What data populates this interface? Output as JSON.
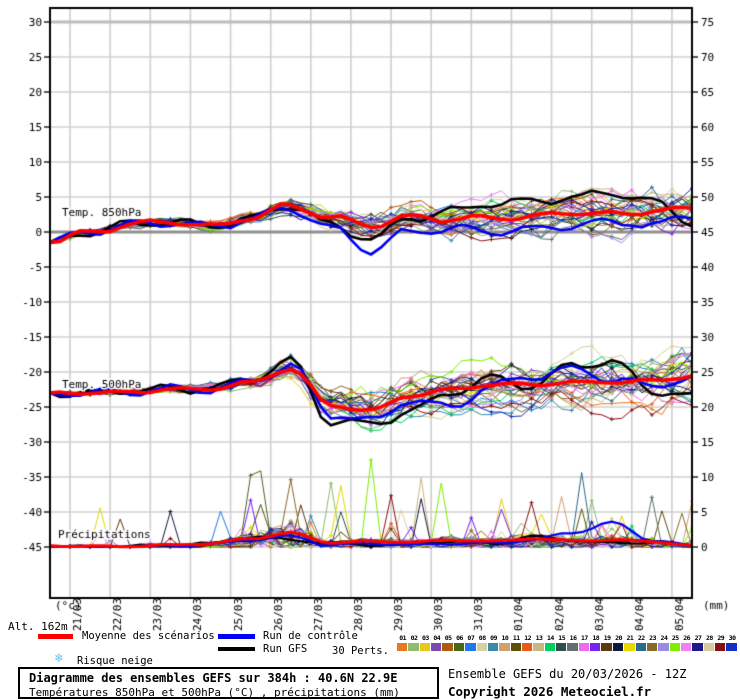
{
  "labels": {
    "alt": "Alt. 162m"
  },
  "legend": {
    "mean": {
      "label": "Moyenne des scénarios",
      "color": "#ff0000"
    },
    "control": {
      "label": "Run de contrôle",
      "color": "#0000ee"
    },
    "gfs": {
      "label": "Run GFS",
      "color": "#000000"
    }
  },
  "perts": {
    "label": "30 Perts.",
    "ids": [
      "01",
      "02",
      "03",
      "04",
      "05",
      "06",
      "07",
      "08",
      "09",
      "10",
      "11",
      "12",
      "13",
      "14",
      "15",
      "16",
      "17",
      "18",
      "19",
      "20",
      "21",
      "22",
      "23",
      "24",
      "25",
      "26",
      "27",
      "28",
      "29",
      "30"
    ],
    "colors": [
      "#e87820",
      "#8fbc6f",
      "#e8c820",
      "#7a4ab0",
      "#b05a10",
      "#4a681a",
      "#1e7ae8",
      "#d8d0a0",
      "#3a8aa8",
      "#d0a070",
      "#5a500a",
      "#e85a1a",
      "#c8b880",
      "#00d060",
      "#2f4f4f",
      "#607070",
      "#ee6aee",
      "#7722ee",
      "#5a3a10",
      "#101840",
      "#e8d800",
      "#2a6a8a",
      "#8a6a2a",
      "#9a8ae8",
      "#7fee00",
      "#ee82ee",
      "#1a1a8a",
      "#d8c8a0",
      "#8a1010",
      "#1030c0"
    ]
  },
  "snow": {
    "icon_glyph": "❄",
    "label": "Risque neige"
  },
  "footer": {
    "title_line1": "Diagramme des ensembles GEFS sur 384h : 40.6N 22.9E",
    "title_line2": "Températures 850hPa et 500hPa (°C) , précipitations (mm)",
    "run_info": "Ensemble GEFS du 20/03/2026 - 12Z",
    "copyright": "Copyright 2026 Meteociel.fr"
  },
  "chart_data": {
    "type": "line",
    "hours_total": 384,
    "x_ticks": [
      "21/03",
      "22/03",
      "23/03",
      "24/03",
      "25/03",
      "26/03",
      "27/03",
      "28/03",
      "29/03",
      "30/03",
      "31/03",
      "01/04",
      "02/04",
      "03/04",
      "04/04",
      "05/04"
    ],
    "y_left": {
      "unit": "(°c)",
      "min": -45,
      "max": 30,
      "step": 5
    },
    "y_right": {
      "unit": "(mm)",
      "min": 0,
      "max": 75,
      "step": 5
    },
    "grid": {
      "color": "#cfcfcf",
      "zero_line_color": "#8f8f8f",
      "top_line_color": "#bdbdbd"
    },
    "panels": {
      "temp850": {
        "label": "Temp. 850hPa",
        "mean": {
          "name": "Moyenne des scénarios",
          "color": "#ff0000",
          "values": [
            -1.5,
            0.0,
            1.0,
            1.5,
            0.8,
            2.0,
            3.8,
            2.0,
            1.0,
            2.2,
            1.8,
            2.0,
            2.2,
            2.8,
            2.5,
            3.0,
            3.4
          ]
        },
        "control": {
          "name": "Run de contrôle",
          "color": "#0000ee",
          "values": [
            -1.5,
            0.0,
            1.0,
            1.4,
            0.8,
            1.8,
            3.5,
            0.5,
            -2.5,
            0.0,
            0.5,
            0.0,
            0.5,
            1.0,
            1.5,
            1.0,
            2.4
          ]
        },
        "gfs": {
          "name": "Run GFS",
          "color": "#000000",
          "values": [
            -1.5,
            0.1,
            1.0,
            1.5,
            0.9,
            2.0,
            4.0,
            1.0,
            -1.0,
            2.0,
            3.0,
            4.0,
            4.5,
            5.0,
            5.5,
            4.5,
            1.5
          ]
        },
        "spread": [
          0.3,
          0.5,
          0.6,
          0.7,
          0.9,
          1.1,
          1.6,
          2.6,
          3.4,
          3.5,
          3.6,
          4.0,
          4.0,
          4.4,
          4.6,
          5.0,
          5.4
        ]
      },
      "temp500": {
        "label": "Temp. 500hPa",
        "mean": {
          "name": "Moyenne des scénarios",
          "color": "#ff0000",
          "values": [
            -23.0,
            -23.0,
            -22.8,
            -22.5,
            -22.4,
            -21.5,
            -19.5,
            -24.8,
            -25.5,
            -23.3,
            -22.5,
            -21.8,
            -21.8,
            -21.5,
            -21.4,
            -21.3,
            -20.5
          ]
        },
        "control": {
          "name": "Run de contrôle",
          "color": "#0000ee",
          "values": [
            -23.0,
            -23.0,
            -22.8,
            -22.5,
            -22.4,
            -21.3,
            -19.0,
            -26.0,
            -27.0,
            -24.0,
            -25.0,
            -22.0,
            -20.5,
            -19.5,
            -21.0,
            -22.0,
            -21.0
          ]
        },
        "gfs": {
          "name": "Run GFS",
          "color": "#000000",
          "values": [
            -23.0,
            -23.0,
            -22.7,
            -22.4,
            -22.3,
            -21.0,
            -18.5,
            -27.0,
            -27.5,
            -25.5,
            -23.0,
            -21.0,
            -22.0,
            -19.0,
            -18.5,
            -22.5,
            -23.5
          ]
        },
        "spread": [
          0.3,
          0.5,
          0.6,
          0.8,
          1.0,
          1.6,
          2.6,
          4.0,
          4.4,
          4.5,
          4.6,
          5.0,
          5.0,
          5.2,
          5.4,
          5.6,
          6.0
        ]
      },
      "precip": {
        "label": "Précipitations",
        "mean": {
          "name": "Moyenne des scénarios",
          "color": "#ff0000",
          "values": [
            0.2,
            0.1,
            0.1,
            0.3,
            0.5,
            1.2,
            2.0,
            0.6,
            0.8,
            0.7,
            1.0,
            0.8,
            1.2,
            0.9,
            1.0,
            0.8,
            0.2
          ]
        },
        "control": {
          "name": "Run de contrôle",
          "color": "#0000ee",
          "values": [
            0.0,
            0.0,
            0.0,
            0.2,
            0.4,
            1.0,
            1.5,
            0.3,
            0.5,
            0.3,
            0.5,
            0.5,
            1.0,
            2.0,
            3.5,
            1.0,
            0.2
          ]
        },
        "gfs": {
          "name": "Run GFS",
          "color": "#000000",
          "values": [
            0.0,
            0.0,
            0.1,
            0.3,
            0.5,
            1.5,
            1.0,
            0.5,
            0.3,
            0.5,
            0.8,
            0.5,
            1.5,
            1.0,
            0.5,
            0.8,
            0.2
          ]
        },
        "max_member_spike_mm": 14
      }
    }
  }
}
